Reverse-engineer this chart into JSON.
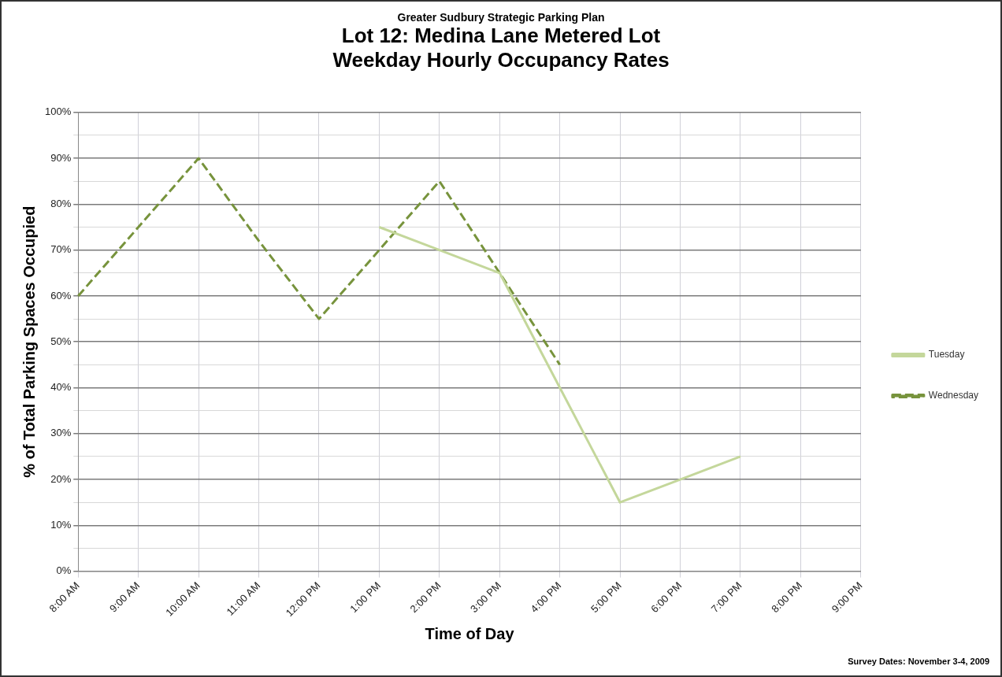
{
  "chart_data": {
    "type": "line",
    "subtitle": "Greater Sudbury  Strategic Parking Plan",
    "title": "Lot 12: Medina Lane Metered Lot\nWeekday Hourly Occupancy Rates",
    "xlabel": "Time of Day",
    "ylabel": "% of Total Parking Spaces Occupied",
    "categories": [
      "8:00 AM",
      "9:00 AM",
      "10:00 AM",
      "11:00 AM",
      "12:00 PM",
      "1:00 PM",
      "2:00 PM",
      "3:00 PM",
      "4:00 PM",
      "5:00 PM",
      "6:00 PM",
      "7:00 PM",
      "8:00 PM",
      "9:00 PM"
    ],
    "series": [
      {
        "name": "Tuesday",
        "color": "#c4d79b",
        "line_style": "solid",
        "values": [
          null,
          null,
          null,
          null,
          null,
          75,
          70,
          65,
          40,
          15,
          20,
          25,
          null,
          null
        ]
      },
      {
        "name": "Wednesday",
        "color": "#77933c",
        "line_style": "dashed",
        "values": [
          60,
          75,
          90,
          72,
          55,
          70,
          85,
          65,
          45,
          null,
          null,
          null,
          null,
          null
        ]
      }
    ],
    "ylim": [
      0,
      100
    ],
    "yticks": [
      {
        "value": 0,
        "label": "0%"
      },
      {
        "value": 5,
        "label": null
      },
      {
        "value": 10,
        "label": "10%"
      },
      {
        "value": 15,
        "label": null
      },
      {
        "value": 20,
        "label": "20%"
      },
      {
        "value": 25,
        "label": null
      },
      {
        "value": 30,
        "label": "30%"
      },
      {
        "value": 35,
        "label": null
      },
      {
        "value": 40,
        "label": "40%"
      },
      {
        "value": 45,
        "label": null
      },
      {
        "value": 50,
        "label": "50%"
      },
      {
        "value": 55,
        "label": null
      },
      {
        "value": 60,
        "label": "60%"
      },
      {
        "value": 65,
        "label": null
      },
      {
        "value": 70,
        "label": "70%"
      },
      {
        "value": 75,
        "label": null
      },
      {
        "value": 80,
        "label": "80%"
      },
      {
        "value": 85,
        "label": null
      },
      {
        "value": 90,
        "label": "90%"
      },
      {
        "value": 95,
        "label": null
      },
      {
        "value": 100,
        "label": "100%"
      }
    ],
    "grid": true,
    "legend": "right",
    "marker": "none",
    "annotations": [
      "Survey Dates: November 3-4, 2009"
    ]
  }
}
